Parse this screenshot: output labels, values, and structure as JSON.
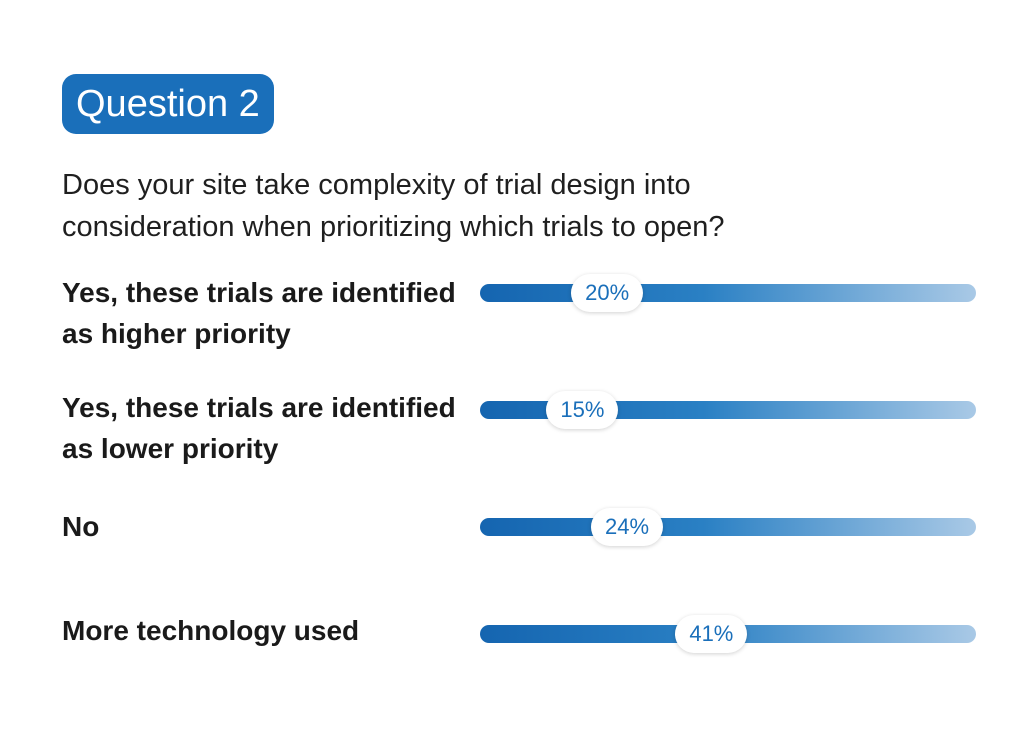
{
  "header": {
    "badge": "Question 2",
    "question": "Does your site take complexity of trial design into consideration when prioritizing which trials to open?"
  },
  "colors": {
    "accent": "#1a6fba",
    "bar_start": "#1565b0",
    "bar_end": "#a9c9e6"
  },
  "chart_data": {
    "type": "bar",
    "orientation": "horizontal",
    "categories": [
      "Yes, these trials are identified as higher priority",
      "Yes, these trials are identified as lower priority",
      "No",
      "More technology used"
    ],
    "values": [
      20,
      15,
      24,
      41
    ],
    "value_labels": [
      "20%",
      "15%",
      "24%",
      "41%"
    ],
    "unit": "%",
    "xlim": [
      0,
      100
    ],
    "grid": false,
    "legend": "none"
  }
}
